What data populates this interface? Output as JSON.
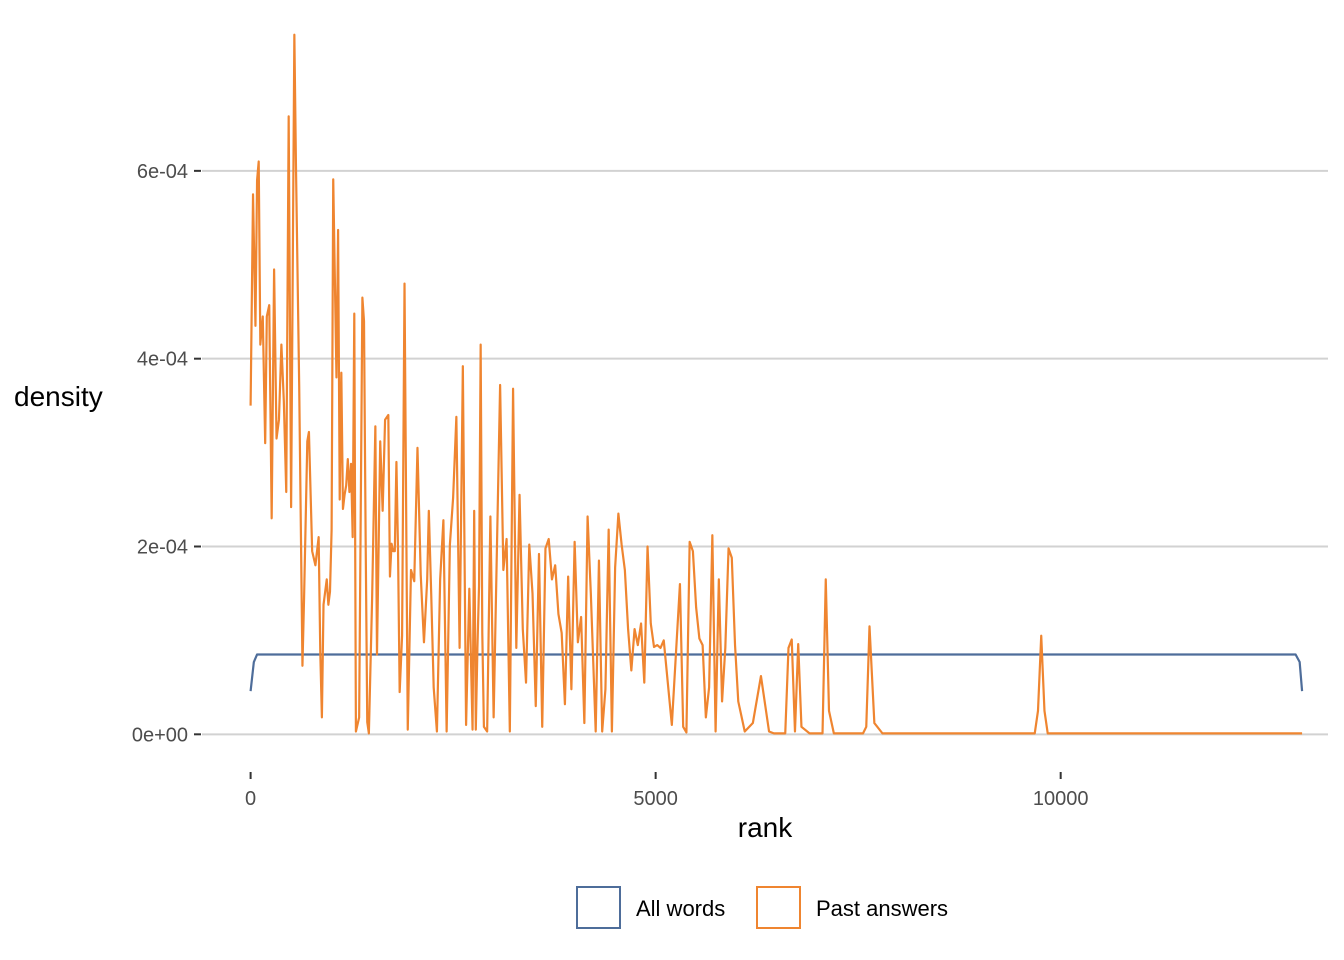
{
  "chart_data": {
    "type": "line",
    "title": "",
    "xlabel": "rank",
    "ylabel": "density",
    "xlim": [
      -600,
      13300
    ],
    "ylim": [
      -3.8e-05,
      0.00075
    ],
    "x_ticks": [
      0,
      5000,
      10000
    ],
    "x_tick_labels": [
      "0",
      "5000",
      "10000"
    ],
    "y_ticks": [
      0,
      0.0002,
      0.0004,
      0.0006
    ],
    "y_tick_labels": [
      "0e+00",
      "2e-04",
      "4e-04",
      "6e-04"
    ],
    "grid": "horizontal major",
    "legend_position": "bottom",
    "series": [
      {
        "name": "All words",
        "color": "#4e6d9a",
        "x": [
          0,
          40,
          80,
          200,
          1000,
          3000,
          6000,
          9000,
          12000,
          12900,
          12950,
          12980
        ],
        "y": [
          4.6e-05,
          7.7e-05,
          8.5e-05,
          8.5e-05,
          8.5e-05,
          8.5e-05,
          8.5e-05,
          8.5e-05,
          8.5e-05,
          8.5e-05,
          7.7e-05,
          4.6e-05
        ]
      },
      {
        "name": "Past answers",
        "color": "#ef8530",
        "x": [
          0,
          30,
          60,
          80,
          100,
          120,
          150,
          180,
          200,
          230,
          260,
          290,
          320,
          350,
          380,
          410,
          440,
          470,
          500,
          540,
          560,
          600,
          640,
          660,
          700,
          720,
          760,
          800,
          840,
          860,
          880,
          900,
          940,
          960,
          980,
          1000,
          1020,
          1060,
          1080,
          1100,
          1120,
          1140,
          1160,
          1180,
          1200,
          1220,
          1240,
          1260,
          1280,
          1300,
          1340,
          1380,
          1400,
          1420,
          1440,
          1460,
          1500,
          1540,
          1560,
          1600,
          1630,
          1660,
          1700,
          1720,
          1740,
          1760,
          1780,
          1800,
          1820,
          1840,
          1870,
          1900,
          1940,
          1980,
          2020,
          2060,
          2100,
          2140,
          2180,
          2200,
          2230,
          2260,
          2300,
          2340,
          2380,
          2420,
          2460,
          2500,
          2540,
          2580,
          2620,
          2660,
          2700,
          2740,
          2760,
          2780,
          2800,
          2820,
          2840,
          2860,
          2880,
          2920,
          2960,
          3000,
          3040,
          3080,
          3120,
          3160,
          3200,
          3240,
          3280,
          3320,
          3360,
          3400,
          3440,
          3480,
          3520,
          3560,
          3600,
          3640,
          3680,
          3720,
          3760,
          3800,
          3840,
          3880,
          3920,
          3960,
          4000,
          4040,
          4080,
          4120,
          4160,
          4200,
          4260,
          4300,
          4340,
          4380,
          4420,
          4460,
          4500,
          4540,
          4580,
          4620,
          4660,
          4700,
          4740,
          4780,
          4820,
          4860,
          4900,
          4940,
          4980,
          5020,
          5060,
          5100,
          5200,
          5300,
          5340,
          5380,
          5420,
          5460,
          5500,
          5540,
          5580,
          5620,
          5660,
          5700,
          5740,
          5780,
          5820,
          5860,
          5900,
          5940,
          5980,
          6020,
          6100,
          6200,
          6300,
          6400,
          6460,
          6520,
          6560,
          6600,
          6640,
          6680,
          6720,
          6760,
          6800,
          6900,
          7000,
          7060,
          7100,
          7140,
          7200,
          7300,
          7400,
          7500,
          7560,
          7600,
          7640,
          7700,
          7800,
          8000,
          8500,
          9000,
          9500,
          9680,
          9720,
          9760,
          9800,
          9840,
          10000,
          11000,
          12000,
          12980
        ],
        "y": [
          0.00035,
          0.000575,
          0.000435,
          0.00059,
          0.00061,
          0.000415,
          0.000445,
          0.00031,
          0.000445,
          0.000457,
          0.00023,
          0.000495,
          0.000315,
          0.000335,
          0.000415,
          0.000355,
          0.000258,
          0.000658,
          0.000242,
          0.000745,
          0.000605,
          0.00037,
          7.3e-05,
          0.000145,
          0.000312,
          0.000322,
          0.000195,
          0.00018,
          0.00021,
          8.8e-05,
          1.8e-05,
          0.000138,
          0.000165,
          0.000138,
          0.000152,
          0.000218,
          0.000591,
          0.00038,
          0.000537,
          0.00025,
          0.000385,
          0.00024,
          0.000255,
          0.000265,
          0.000293,
          0.000258,
          0.000288,
          0.00021,
          0.000448,
          3e-06,
          1.8e-05,
          0.000465,
          0.00044,
          0.00021,
          1.3e-05,
          1e-06,
          0.000145,
          0.000328,
          8.5e-05,
          0.000312,
          0.000238,
          0.000335,
          0.00034,
          0.000168,
          0.000203,
          0.000195,
          0.000195,
          0.00029,
          0.000195,
          4.5e-05,
          0.000105,
          0.00048,
          5e-06,
          0.000175,
          0.000163,
          0.000305,
          0.00017,
          9.8e-05,
          0.000165,
          0.000238,
          0.000148,
          5e-05,
          3e-06,
          0.000165,
          0.000228,
          3e-06,
          0.000202,
          0.000252,
          0.000338,
          9.2e-05,
          0.000392,
          1e-05,
          0.000155,
          5e-06,
          0.000238,
          5e-06,
          9.2e-05,
          0.000158,
          0.000415,
          0.000108,
          8e-06,
          3e-06,
          0.000232,
          1.8e-05,
          0.000195,
          0.000372,
          0.000175,
          0.000208,
          3e-06,
          0.000368,
          9.2e-05,
          0.000255,
          0.000112,
          5.5e-05,
          0.000202,
          0.00015,
          3e-05,
          0.000192,
          8e-06,
          0.000198,
          0.000208,
          0.000165,
          0.00018,
          0.000128,
          0.000108,
          3.2e-05,
          0.000168,
          4.8e-05,
          0.000205,
          9.8e-05,
          0.000125,
          1.2e-05,
          0.000232,
          0.00015,
          3e-06,
          0.000185,
          3e-06,
          4.8e-05,
          0.000218,
          3e-06,
          0.000178,
          0.000235,
          0.000202,
          0.000175,
          0.000112,
          6.8e-05,
          0.000112,
          9.5e-05,
          0.000118,
          5.5e-05,
          0.0002,
          0.000118,
          9.3e-05,
          9.5e-05,
          9.2e-05,
          0.0001,
          1e-05,
          0.00016,
          8e-06,
          2e-06,
          0.000205,
          0.000195,
          0.000135,
          0.000102,
          9.5e-05,
          1.8e-05,
          5e-05,
          0.000212,
          3e-06,
          0.000165,
          3.5e-05,
          9.2e-05,
          0.000198,
          0.000188,
          9.5e-05,
          3.5e-05,
          3e-06,
          1.2e-05,
          6.2e-05,
          3e-06,
          1e-06,
          1e-06,
          1e-06,
          1e-06,
          9.2e-05,
          0.000101,
          3e-06,
          9.6e-05,
          8e-06,
          1e-06,
          1e-06,
          1e-06,
          0.000165,
          2.5e-05,
          1e-06,
          1e-06,
          1e-06,
          1e-06,
          1e-06,
          8e-06,
          0.000115,
          1.2e-05,
          1e-06,
          1e-06,
          1e-06,
          1e-06,
          1e-06,
          1e-06,
          2.5e-05,
          0.000105,
          2.5e-05,
          1e-06,
          1e-06,
          1e-06,
          1e-06,
          1e-06
        ]
      }
    ]
  }
}
